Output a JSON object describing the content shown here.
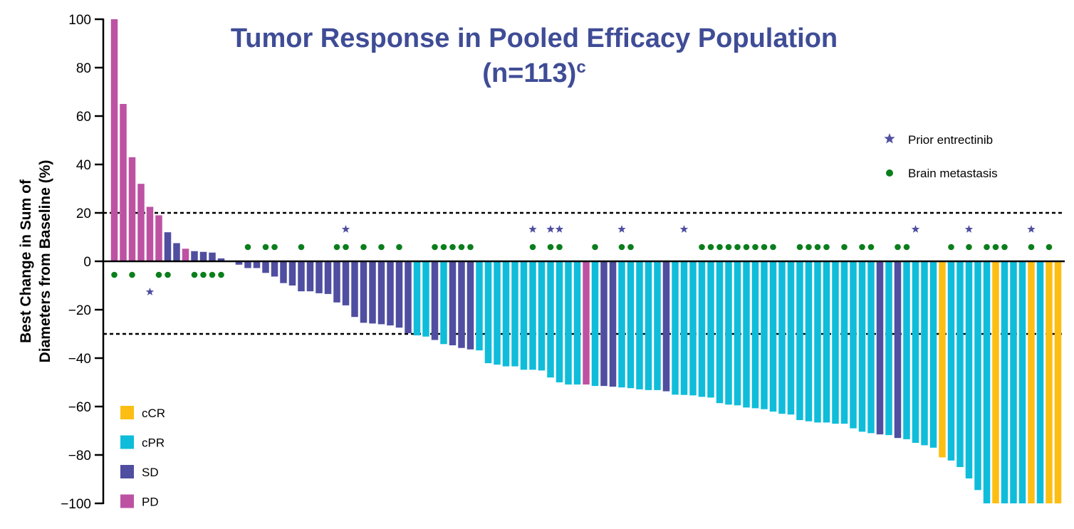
{
  "chart_data": {
    "type": "bar",
    "title": "Tumor Response in Pooled Efficacy Population",
    "subtitle_main": "(n=113)",
    "subtitle_superscript": "c",
    "xlabel": "",
    "ylabel_line1": "Best Change in Sum of",
    "ylabel_line2": "Diameters from Baseline (%)",
    "ylim": [
      -100,
      100
    ],
    "yticks": [
      100,
      80,
      60,
      40,
      20,
      0,
      -20,
      -40,
      -60,
      -80,
      -100
    ],
    "ytick_labels": [
      "100",
      "80",
      "60",
      "40",
      "20",
      "0",
      "−20",
      "−40",
      "−60",
      "−80",
      "−100"
    ],
    "reference_lines": [
      20,
      -30
    ],
    "colors": {
      "cCR": "#fdbe14",
      "cPR": "#0fbdda",
      "SD": "#4f4ea0",
      "PD": "#bd52a3",
      "prior_entrectinib": "#4f4ea0",
      "brain_metastasis": "#0b7e1c",
      "title": "#3f4c96"
    },
    "legend_response": [
      {
        "key": "cCR",
        "label": "cCR"
      },
      {
        "key": "cPR",
        "label": "cPR"
      },
      {
        "key": "SD",
        "label": "SD"
      },
      {
        "key": "PD",
        "label": "PD"
      }
    ],
    "legend_markers": [
      {
        "key": "prior_entrectinib",
        "label": "Prior entrectinib",
        "symbol": "star"
      },
      {
        "key": "brain_metastasis",
        "label": "Brain metastasis",
        "symbol": "dot"
      }
    ],
    "values": [
      100,
      65,
      43,
      32,
      22.5,
      19,
      12,
      7.5,
      5.2,
      4.2,
      3.9,
      3.6,
      1.2,
      0,
      -1.4,
      -2.8,
      -2.8,
      -4.8,
      -6.3,
      -9,
      -10,
      -12.4,
      -12.4,
      -13.2,
      -13.5,
      -17,
      -18.2,
      -23,
      -25.4,
      -25.7,
      -26,
      -26.5,
      -27.4,
      -29.7,
      -30.6,
      -31.1,
      -32.5,
      -34.2,
      -34.7,
      -35.8,
      -36.4,
      -36.8,
      -42.1,
      -42.7,
      -43.4,
      -43.4,
      -44.8,
      -44.8,
      -45.1,
      -48,
      -50,
      -50.9,
      -50.9,
      -50.9,
      -51.5,
      -51.5,
      -51.8,
      -52.1,
      -52.4,
      -52.9,
      -53.2,
      -53.2,
      -53.7,
      -55.1,
      -55.2,
      -55.4,
      -56,
      -56.3,
      -58.6,
      -59.2,
      -59.5,
      -60.4,
      -60.7,
      -61.1,
      -62.1,
      -63,
      -63.3,
      -65.6,
      -66.1,
      -66.6,
      -66.6,
      -67.1,
      -67.1,
      -69,
      -70.4,
      -71,
      -71.5,
      -71.8,
      -73,
      -73.5,
      -75,
      -76,
      -77,
      -81,
      -82.3,
      -85,
      -89.7,
      -94.5,
      -100,
      -100,
      -100,
      -100,
      -100,
      -100,
      -100,
      -100,
      -100
    ],
    "response": [
      "PD",
      "PD",
      "PD",
      "PD",
      "PD",
      "PD",
      "SD",
      "SD",
      "PD",
      "SD",
      "SD",
      "SD",
      "SD",
      "SD",
      "SD",
      "SD",
      "SD",
      "SD",
      "SD",
      "SD",
      "SD",
      "SD",
      "SD",
      "SD",
      "SD",
      "SD",
      "SD",
      "SD",
      "SD",
      "SD",
      "SD",
      "SD",
      "SD",
      "SD",
      "cPR",
      "cPR",
      "SD",
      "cPR",
      "SD",
      "SD",
      "SD",
      "cPR",
      "cPR",
      "cPR",
      "cPR",
      "cPR",
      "cPR",
      "cPR",
      "cPR",
      "cPR",
      "cPR",
      "cPR",
      "cPR",
      "PD",
      "cPR",
      "SD",
      "SD",
      "cPR",
      "cPR",
      "cPR",
      "cPR",
      "cPR",
      "SD",
      "cPR",
      "cPR",
      "cPR",
      "cPR",
      "cPR",
      "cPR",
      "cPR",
      "cPR",
      "cPR",
      "cPR",
      "cPR",
      "cPR",
      "cPR",
      "cPR",
      "cPR",
      "cPR",
      "cPR",
      "cPR",
      "cPR",
      "cPR",
      "cPR",
      "cPR",
      "cPR",
      "SD",
      "cPR",
      "SD",
      "cPR",
      "cPR",
      "cPR",
      "cPR",
      "cCR",
      "cPR",
      "cPR",
      "cPR",
      "cPR",
      "cPR",
      "cCR",
      "cPR",
      "cPR",
      "cPR",
      "cCR",
      "cPR",
      "cCR",
      "cCR"
    ],
    "prior_entrectinib_indices": [
      4,
      26,
      47,
      49,
      50,
      57,
      64,
      90,
      96,
      103
    ],
    "brain_metastasis_indices": [
      0,
      2,
      5,
      6,
      9,
      10,
      11,
      12,
      15,
      17,
      18,
      21,
      25,
      26,
      28,
      30,
      32,
      36,
      37,
      38,
      39,
      40,
      47,
      49,
      50,
      54,
      57,
      58,
      66,
      67,
      68,
      69,
      70,
      71,
      72,
      73,
      74,
      77,
      78,
      79,
      80,
      82,
      84,
      85,
      88,
      89,
      94,
      96,
      98,
      99,
      100,
      103,
      105
    ]
  }
}
